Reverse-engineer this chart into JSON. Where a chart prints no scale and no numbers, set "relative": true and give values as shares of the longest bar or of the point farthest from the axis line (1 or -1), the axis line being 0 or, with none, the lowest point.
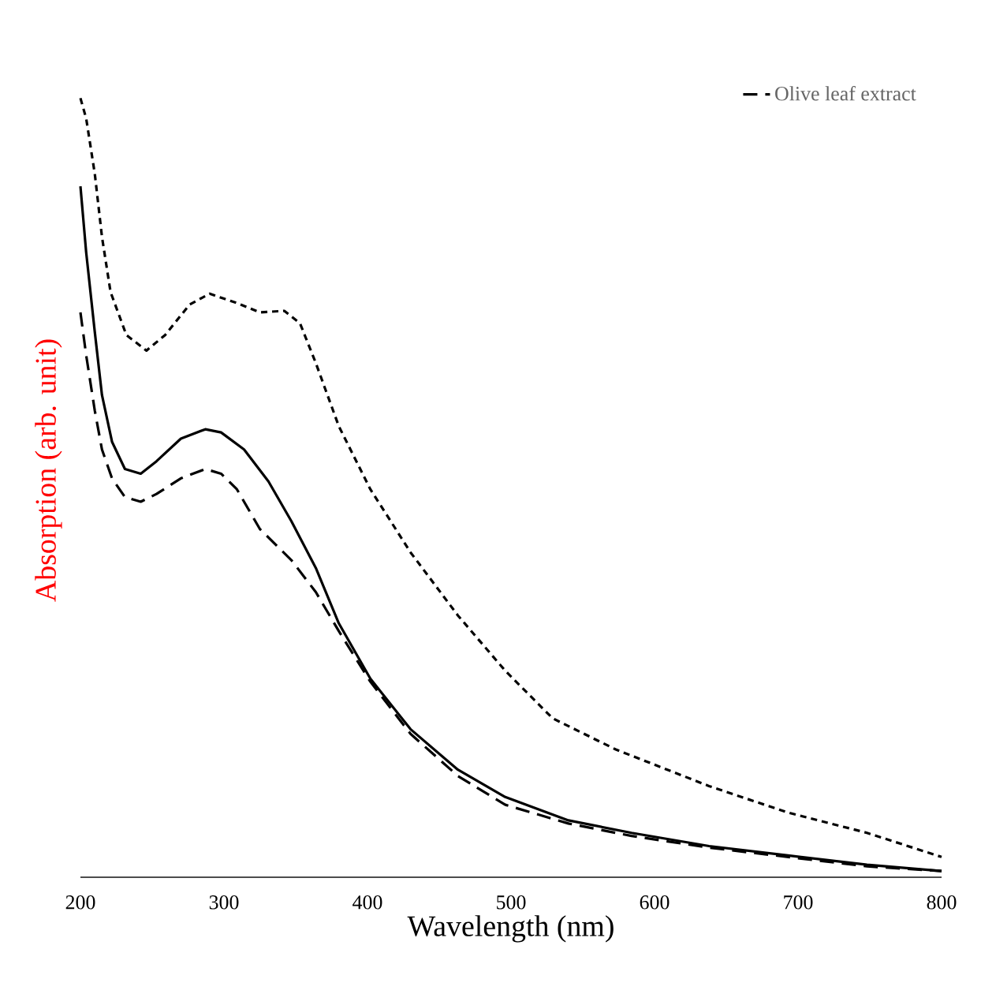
{
  "chart_data": {
    "type": "line",
    "xlabel": "Wavelength (nm)",
    "ylabel": "Absorption (arb. unit)",
    "relative": true,
    "xlim": [
      200,
      800
    ],
    "xticks": [
      200,
      300,
      400,
      500,
      600,
      700,
      800
    ],
    "legend": "top right",
    "grid": false,
    "series": [
      {
        "color": "#000000",
        "line_style": "dotted",
        "x": [
          200,
          204,
          210,
          215,
          221,
          232,
          246,
          259,
          276,
          290,
          309,
          325,
          342,
          353,
          364,
          380,
          402,
          430,
          463,
          496,
          529,
          573,
          638,
          693,
          748,
          800
        ],
        "values": [
          1.0,
          0.974,
          0.903,
          0.822,
          0.751,
          0.696,
          0.676,
          0.696,
          0.735,
          0.749,
          0.737,
          0.725,
          0.727,
          0.711,
          0.66,
          0.579,
          0.498,
          0.417,
          0.336,
          0.265,
          0.204,
          0.164,
          0.117,
          0.083,
          0.057,
          0.026
        ]
      },
      {
        "color": "#000000",
        "line_style": "solid",
        "x": [
          200,
          204,
          210,
          215,
          222,
          231,
          242,
          253,
          270,
          287,
          298,
          314,
          331,
          347,
          364,
          380,
          402,
          430,
          463,
          496,
          540,
          584,
          638,
          693,
          748,
          800
        ],
        "values": [
          0.887,
          0.802,
          0.7,
          0.619,
          0.559,
          0.524,
          0.518,
          0.534,
          0.563,
          0.575,
          0.571,
          0.549,
          0.508,
          0.457,
          0.397,
          0.326,
          0.255,
          0.19,
          0.138,
          0.103,
          0.073,
          0.057,
          0.04,
          0.028,
          0.016,
          0.008
        ]
      },
      {
        "name": "Olive leaf extract",
        "color": "#000000",
        "line_style": "dashed",
        "x": [
          200,
          204,
          210,
          215,
          222,
          231,
          242,
          253,
          270,
          287,
          298,
          309,
          325,
          347,
          364,
          380,
          402,
          430,
          463,
          496,
          540,
          584,
          638,
          693,
          748,
          800
        ],
        "values": [
          0.725,
          0.67,
          0.599,
          0.549,
          0.512,
          0.488,
          0.482,
          0.492,
          0.512,
          0.524,
          0.518,
          0.498,
          0.447,
          0.407,
          0.366,
          0.316,
          0.251,
          0.184,
          0.13,
          0.093,
          0.069,
          0.053,
          0.038,
          0.026,
          0.014,
          0.008
        ]
      }
    ]
  }
}
